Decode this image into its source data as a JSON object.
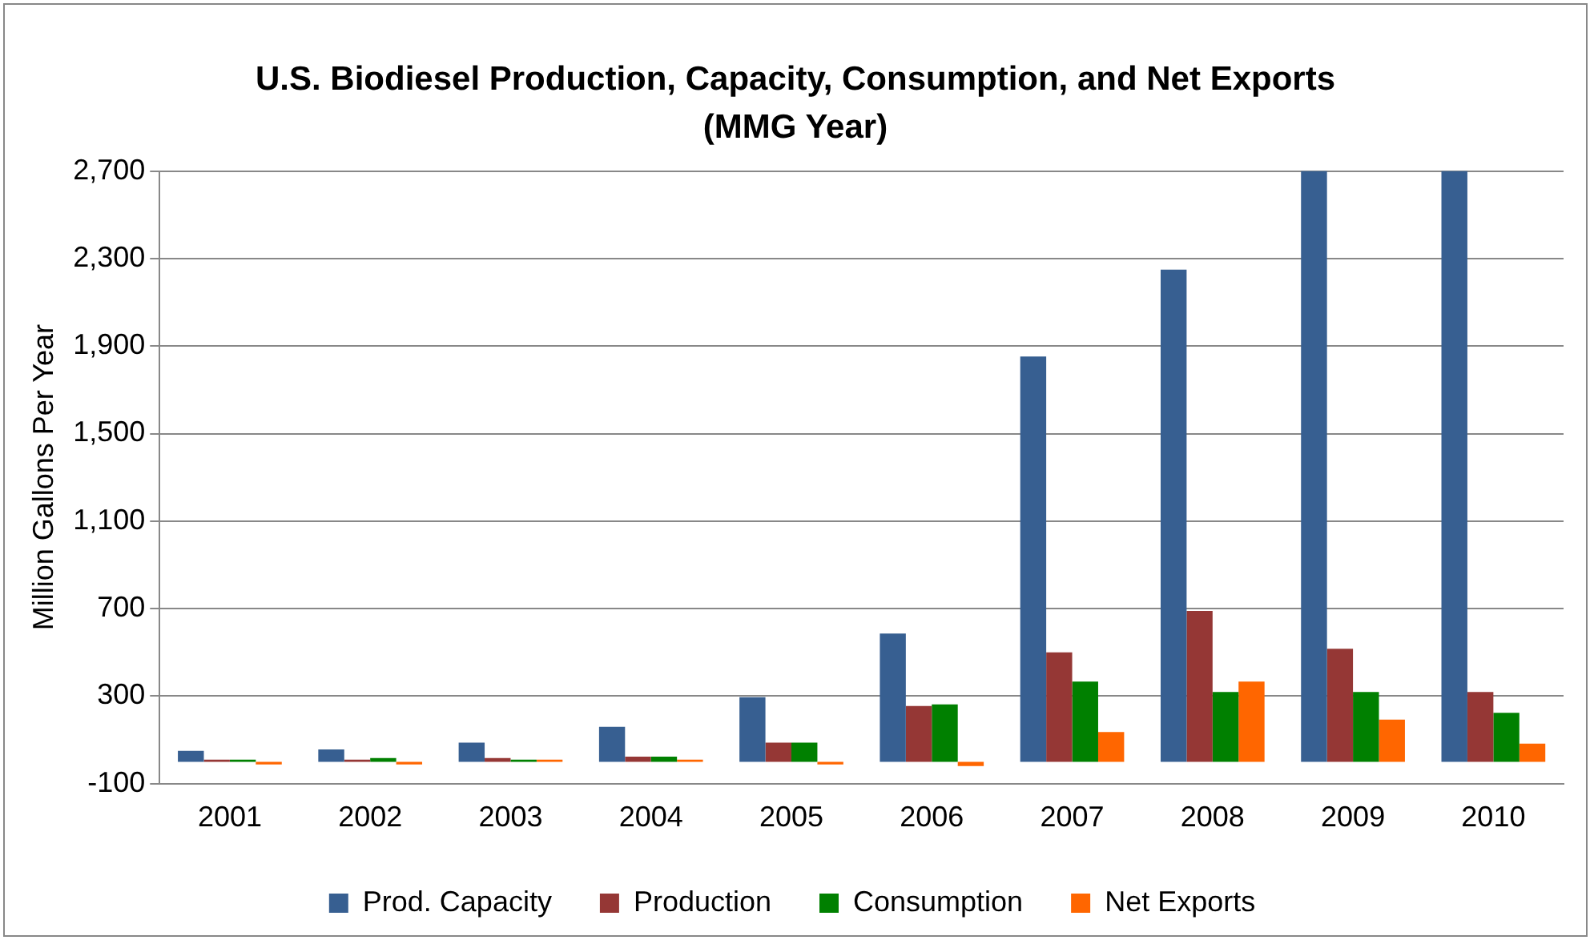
{
  "chart_data": {
    "type": "bar",
    "title": "U.S. Biodiesel Production, Capacity, Consumption, and Net Exports",
    "subtitle": "(MMG Year)",
    "ylabel": "Million Gallons Per Year",
    "categories": [
      "2001",
      "2002",
      "2003",
      "2004",
      "2005",
      "2006",
      "2007",
      "2008",
      "2009",
      "2010"
    ],
    "series": [
      {
        "name": "Prod. Capacity",
        "color": "#375f91",
        "values": [
          50,
          57,
          88,
          160,
          295,
          586,
          1852,
          2249,
          2700,
          2700
        ]
      },
      {
        "name": "Production",
        "color": "#953735",
        "values": [
          10,
          10,
          17,
          24,
          88,
          255,
          500,
          690,
          517,
          319
        ]
      },
      {
        "name": "Consumption",
        "color": "#008000",
        "values": [
          10,
          17,
          10,
          24,
          88,
          262,
          367,
          319,
          319,
          224
        ]
      },
      {
        "name": "Net Exports",
        "color": "#ff6600",
        "values": [
          -12,
          -12,
          10,
          10,
          -12,
          -19,
          136,
          367,
          193,
          83
        ]
      }
    ],
    "ylim": [
      -100,
      2700
    ],
    "yticks": [
      {
        "value": -100,
        "label": "-100"
      },
      {
        "value": 300,
        "label": "300"
      },
      {
        "value": 700,
        "label": "700"
      },
      {
        "value": 1100,
        "label": "1,100"
      },
      {
        "value": 1500,
        "label": "1,500"
      },
      {
        "value": 1900,
        "label": "1,900"
      },
      {
        "value": 2300,
        "label": "2,300"
      },
      {
        "value": 2700,
        "label": "2,700"
      }
    ],
    "grid": "y",
    "legend": "bottom"
  }
}
